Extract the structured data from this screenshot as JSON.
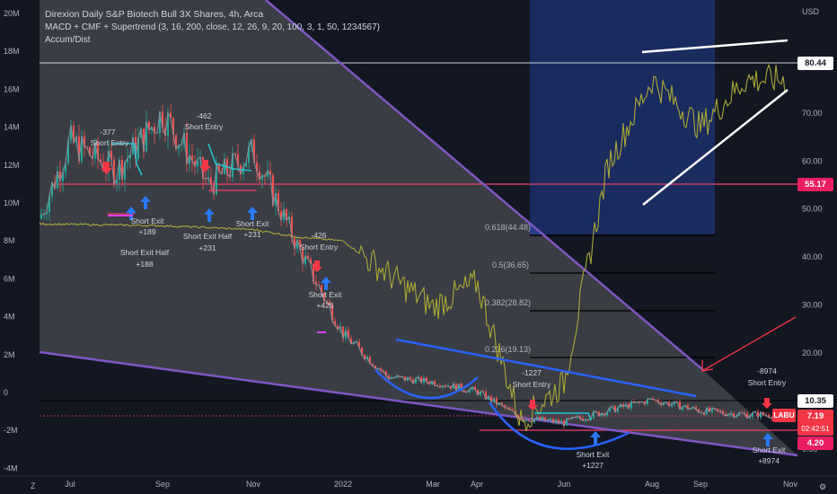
{
  "header": {
    "title": "Direxion Daily S&P Biotech Bull 3X Shares, 4h, Arca",
    "indicator1": "MACD + CMF + Supertrend (3, 16, 200, close, 12, 26, 9, 20, 100, 3, 1, 50, 1234567)",
    "indicator2": "Accum/Dist"
  },
  "currency": "USD",
  "price_badges": {
    "p8044": "80.44",
    "p5517": "55.17",
    "p1035": "10.35",
    "labu_tag": "LABU",
    "last": "7.19",
    "countdown": "02:42:51",
    "p420": "4.20"
  },
  "colors": {
    "background": "#131722",
    "wedge_fill": "#5b5c5f",
    "wedge_line": "#7e57c2",
    "highlight": "#1e3a8a",
    "accdist": "#a8a836",
    "trendline_blue": "#2962ff",
    "channel_white": "#ffffff",
    "red_level": "#f23e6c",
    "arrow_red": "#f23645",
    "arrow_blue": "#2979ff",
    "supertrend": "#26c6da"
  },
  "chart_data": {
    "type": "line",
    "title": "Direxion Daily S&P Biotech Bull 3X Shares, 4h, Arca",
    "x_ticks": [
      "Jul",
      "Sep",
      "Nov",
      "2022",
      "Mar",
      "Apr",
      "Jun",
      "Aug",
      "Sep",
      "Nov"
    ],
    "right_axis_ticks": [
      70.0,
      60.0,
      50.0,
      40.0,
      30.0,
      20.0,
      10.0,
      0.0
    ],
    "left_axis_ticks": [
      "20M",
      "18M",
      "16M",
      "14M",
      "12M",
      "10M",
      "8M",
      "6M",
      "4M",
      "2M",
      "0",
      "-2M",
      "-4M"
    ],
    "right_axis_unit": "USD",
    "fib_levels": [
      {
        "label": "0.618(44.48)",
        "value": 44.48
      },
      {
        "label": "0.5(36.65)",
        "value": 36.65
      },
      {
        "label": "0.382(28.82)",
        "value": 28.82
      },
      {
        "label": "0.236(19.13)",
        "value": 19.13
      }
    ],
    "horizontal_levels": [
      80.44,
      55.17,
      10.35,
      4.2
    ],
    "last_price": 7.19,
    "series": [
      {
        "name": "Accum/Dist",
        "unit": "M",
        "x": [
          "Jun 2021",
          "Sep 2021",
          "Nov 2021",
          "Dec 2021",
          "Jan 2022",
          "Mar 2022",
          "Apr 2022",
          "May 2022",
          "Jun 2022",
          "Jul 2022",
          "Aug 2022",
          "Sep 2022",
          "Oct 2022"
        ],
        "values": [
          8.9,
          8.8,
          8.6,
          8.2,
          8.0,
          4.5,
          5.8,
          -1.5,
          0.5,
          12.0,
          16.5,
          14.0,
          16.5
        ]
      },
      {
        "name": "LABU",
        "unit": "USD",
        "x": [
          "Jun 2021",
          "Jul 2021",
          "Aug 2021",
          "Sep 2021",
          "Oct 2021",
          "Nov 2021",
          "Dec 2021",
          "Jan 2022",
          "Feb 2022",
          "Mar 2022",
          "Apr 2022",
          "May 2022",
          "Jun 2022",
          "Jul 2022",
          "Aug 2022",
          "Sep 2022",
          "Oct 2022"
        ],
        "values": [
          48,
          64,
          58,
          70,
          55,
          62,
          42,
          24,
          15,
          14,
          12,
          6.5,
          5.5,
          8,
          10.3,
          8,
          7.19
        ]
      }
    ],
    "annotations": [
      {
        "text": [
          "-377",
          "Short Entry"
        ]
      },
      {
        "text": [
          "Short Exit",
          "+189"
        ]
      },
      {
        "text": [
          "Short Exit Half",
          "+188"
        ]
      },
      {
        "text": [
          "-462",
          "Short Entry"
        ]
      },
      {
        "text": [
          "Short Exit Half",
          "+231"
        ]
      },
      {
        "text": [
          "Short Exit",
          "+231"
        ]
      },
      {
        "text": [
          "-426",
          "Short Entry"
        ]
      },
      {
        "text": [
          "Short Exit",
          "+426"
        ]
      },
      {
        "text": [
          "-1227",
          "Short Entry"
        ]
      },
      {
        "text": [
          "Short Exit",
          "+1227"
        ]
      },
      {
        "text": [
          "-8974",
          "Short Entry"
        ]
      },
      {
        "text": [
          "Short Exit",
          "+8974"
        ]
      }
    ]
  }
}
